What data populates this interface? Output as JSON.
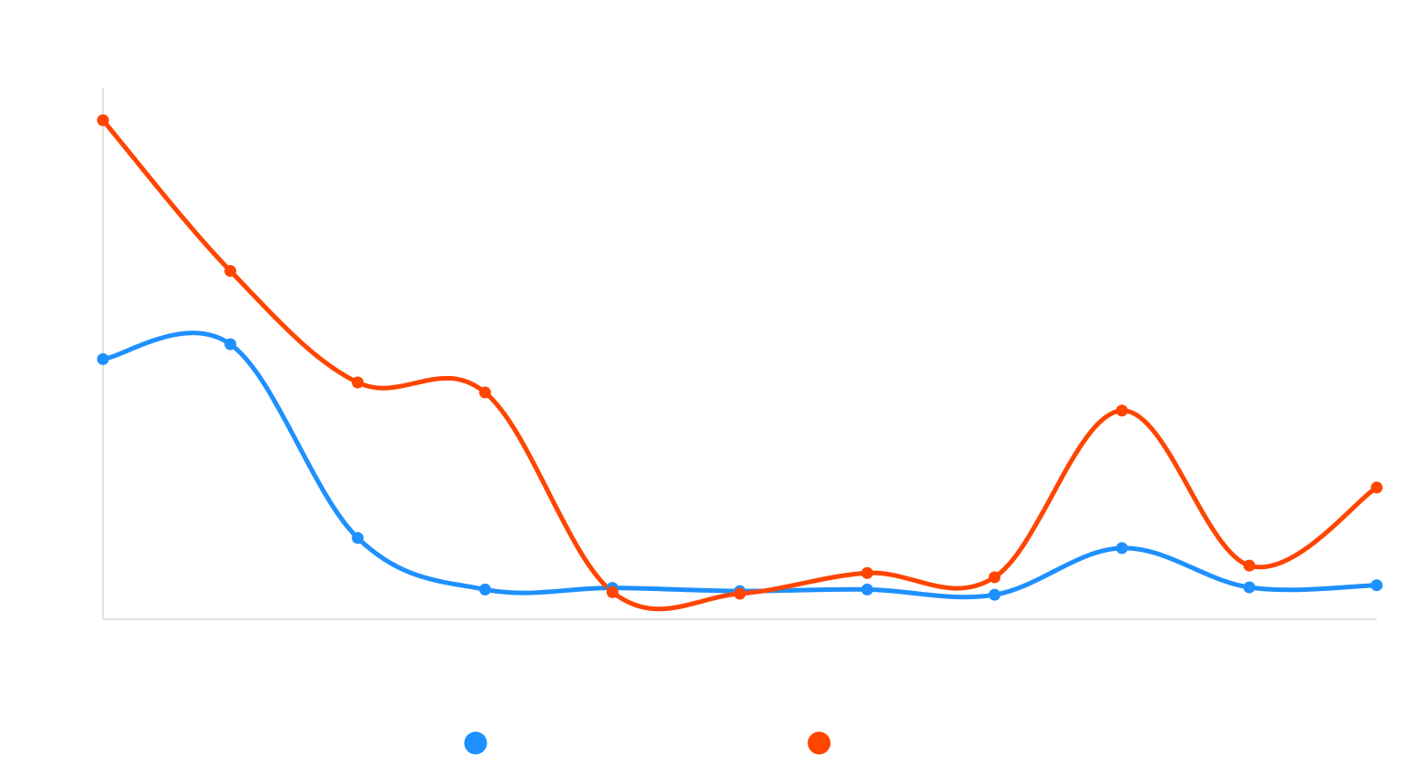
{
  "chart_data": {
    "type": "line",
    "x": [
      0,
      1,
      2,
      3,
      4,
      5,
      6,
      7,
      8,
      9,
      10
    ],
    "ylim": [
      0,
      100
    ],
    "grid": false,
    "legend_position": "bottom",
    "smooth": true,
    "series": [
      {
        "color": "#1e90ff",
        "values": [
          49.0,
          51.8,
          15.3,
          5.6,
          5.9,
          5.3,
          5.6,
          4.6,
          13.4,
          6.0,
          6.4
        ]
      },
      {
        "color": "#ff4500",
        "values": [
          94.0,
          65.6,
          44.6,
          42.7,
          5.1,
          4.8,
          8.7,
          7.9,
          39.3,
          10.1,
          24.8
        ]
      }
    ]
  }
}
